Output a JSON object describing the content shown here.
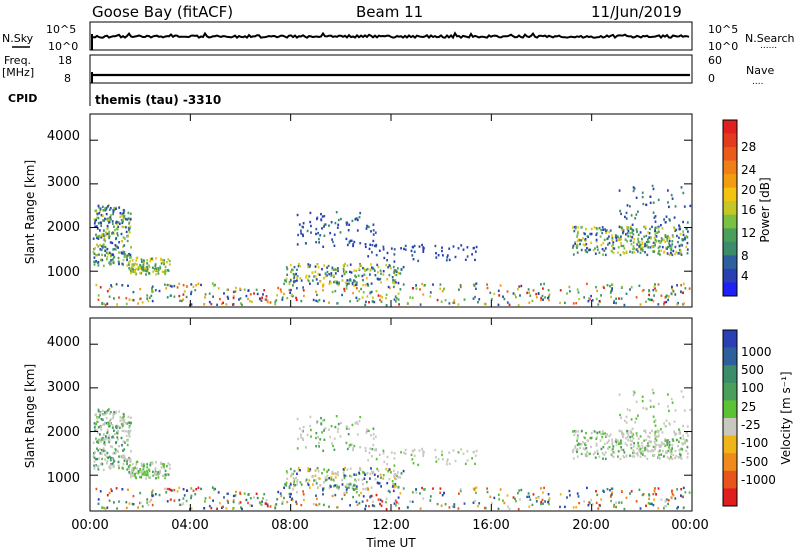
{
  "header": {
    "station": "Goose Bay (fitACF)",
    "beam": "Beam 11",
    "date": "11/Jun/2019"
  },
  "side_labels": {
    "nsky": "N.Sky",
    "freq": "Freq.",
    "freq_unit": "[MHz]",
    "cpid": "CPID",
    "nsearch": "N.Search",
    "nave": "Nave",
    "nsearch_legend": "......",
    "nave_legend": "...."
  },
  "cpid_text": "themis (tau) -3310",
  "colors": {
    "power": [
      "#1f20f5",
      "#2a3fb4",
      "#2c5f9c",
      "#3a8c6a",
      "#4aa05a",
      "#79c043",
      "#c4c726",
      "#f1c40f",
      "#f39c12",
      "#ef7f16",
      "#ea5a1b",
      "#e43a1e",
      "#df2020"
    ],
    "velocity": [
      "#2a3fb4",
      "#2c5f9c",
      "#3a8c6a",
      "#4aa05a",
      "#5bc236",
      "#c8c8c0",
      "#f1b418",
      "#ef8a1c",
      "#e8551c",
      "#e01e1e"
    ]
  },
  "chart_data": [
    {
      "type": "line",
      "panel": "nsky-nsearch",
      "left_ticks": [
        "10^5",
        "10^0"
      ],
      "right_ticks": [
        "10^5",
        "10^0"
      ],
      "x_range_hours": [
        0,
        24
      ]
    },
    {
      "type": "line",
      "panel": "freq-nave",
      "left_ticks": [
        "18",
        "8"
      ],
      "right_ticks": [
        "60",
        "0"
      ],
      "x_range_hours": [
        0,
        24
      ]
    },
    {
      "type": "heatmap",
      "panel": "power",
      "ylabel": "Slant Range [km]",
      "yticks": [
        "1000",
        "2000",
        "3000",
        "4000"
      ],
      "ylim": [
        180,
        4600
      ],
      "colorbar_label": "Power [dB]",
      "colorbar_ticks": [
        "4",
        "8",
        "12",
        "16",
        "20",
        "24",
        "28"
      ],
      "clim": [
        0,
        30
      ]
    },
    {
      "type": "heatmap",
      "panel": "velocity",
      "ylabel": "Slant Range [km]",
      "yticks": [
        "1000",
        "2000",
        "3000",
        "4000"
      ],
      "ylim": [
        180,
        4600
      ],
      "colorbar_label": "Velocity [m s⁻¹]",
      "colorbar_ticks": [
        "1000",
        "500",
        "100",
        "25",
        "-25",
        "-100",
        "-500",
        "-1000"
      ],
      "xlabel": "Time UT",
      "xticks": [
        "00:00",
        "04:00",
        "08:00",
        "12:00",
        "16:00",
        "20:00",
        "00:00"
      ]
    }
  ]
}
